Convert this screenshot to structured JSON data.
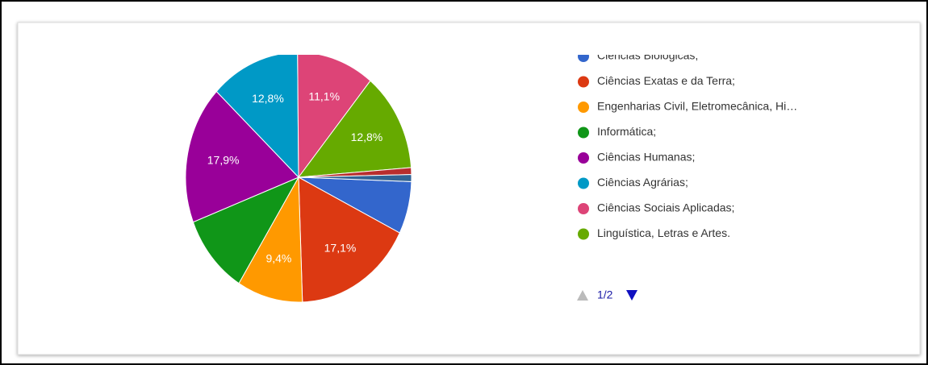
{
  "chart_data": {
    "type": "pie",
    "categories": [
      "Ciências Biológicas;",
      "Ciências Exatas e da Terra;",
      "Engenharias Civil, Eletromecânica, Hi…",
      "Informática;",
      "Ciências Humanas;",
      "Ciências Agrárias;",
      "Ciências Sociais Aplicadas;",
      "Linguística, Letras e Artes.",
      null,
      null
    ],
    "values": [
      6.8,
      17.1,
      9.4,
      10.3,
      17.9,
      12.8,
      11.1,
      12.8,
      0.9,
      0.9
    ],
    "value_labels": [
      null,
      "17,1%",
      "9,4%",
      null,
      "17,9%",
      "12,8%",
      "11,1%",
      "12,8%",
      null,
      null
    ],
    "colors": [
      "#3366cc",
      "#dc3912",
      "#ff9900",
      "#109618",
      "#990099",
      "#0099c6",
      "#dd4477",
      "#66aa00",
      "#b82e2e",
      "#316395"
    ],
    "legend_page": "1/2"
  }
}
